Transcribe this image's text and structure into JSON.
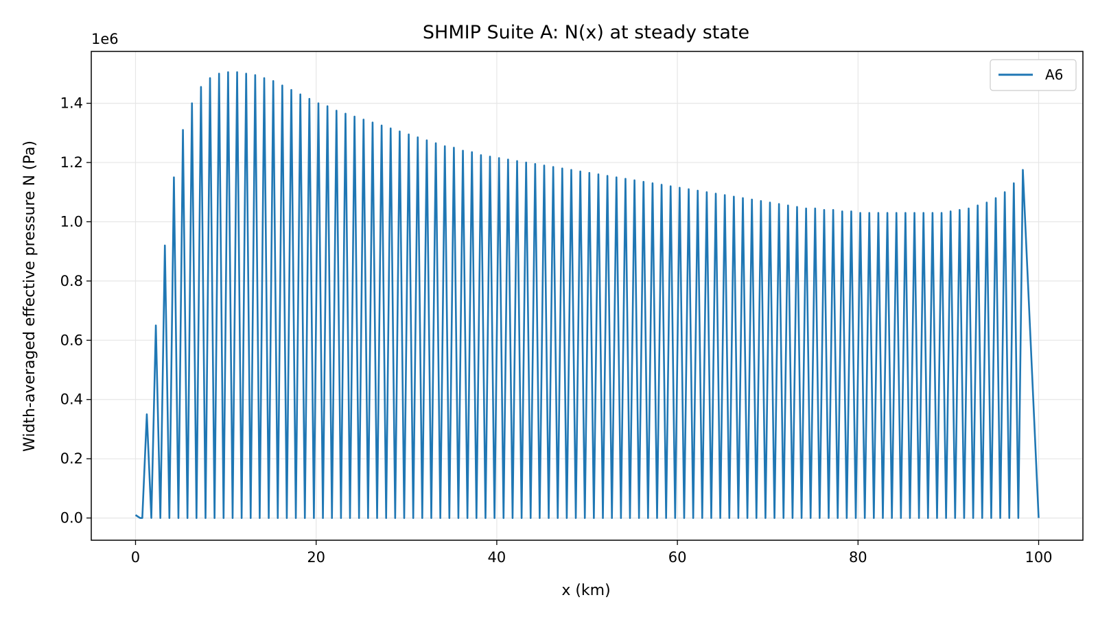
{
  "chart_data": {
    "type": "line",
    "title": "SHMIP Suite A: N(x) at steady state",
    "xlabel": "x (km)",
    "ylabel": "Width-averaged effective pressure N (Pa)",
    "y_offset_label": "1e6",
    "xlim": [
      -4.9,
      104.9
    ],
    "ylim": [
      -0.075,
      1.575
    ],
    "xticks": [
      0,
      20,
      40,
      60,
      80,
      100
    ],
    "xtick_labels": [
      "0",
      "20",
      "40",
      "60",
      "80",
      "100"
    ],
    "yticks": [
      0.0,
      0.2,
      0.4,
      0.6,
      0.8,
      1.0,
      1.2,
      1.4
    ],
    "ytick_labels": [
      "0.0",
      "0.2",
      "0.4",
      "0.6",
      "0.8",
      "1.0",
      "1.2",
      "1.4"
    ],
    "grid": true,
    "legend_position": "top-right",
    "series": [
      {
        "name": "A6",
        "color": "#1f77b4",
        "scale": "1e6",
        "peak_x_start": 1.25,
        "peak_x_step": 1.0,
        "peaks": [
          0.35,
          0.65,
          0.92,
          1.15,
          1.31,
          1.4,
          1.455,
          1.485,
          1.5,
          1.505,
          1.505,
          1.5,
          1.495,
          1.485,
          1.475,
          1.46,
          1.445,
          1.43,
          1.415,
          1.4,
          1.39,
          1.375,
          1.365,
          1.355,
          1.345,
          1.335,
          1.325,
          1.315,
          1.305,
          1.295,
          1.285,
          1.275,
          1.265,
          1.255,
          1.25,
          1.24,
          1.235,
          1.225,
          1.22,
          1.215,
          1.21,
          1.205,
          1.2,
          1.195,
          1.19,
          1.185,
          1.18,
          1.175,
          1.17,
          1.165,
          1.16,
          1.155,
          1.15,
          1.145,
          1.14,
          1.135,
          1.13,
          1.125,
          1.12,
          1.115,
          1.11,
          1.105,
          1.1,
          1.095,
          1.09,
          1.085,
          1.08,
          1.075,
          1.07,
          1.065,
          1.06,
          1.055,
          1.05,
          1.045,
          1.045,
          1.04,
          1.04,
          1.035,
          1.035,
          1.03,
          1.03,
          1.03,
          1.03,
          1.03,
          1.03,
          1.03,
          1.03,
          1.03,
          1.03,
          1.035,
          1.04,
          1.045,
          1.055,
          1.065,
          1.08,
          1.1,
          1.13,
          1.175
        ],
        "end_x": 100
      }
    ]
  }
}
